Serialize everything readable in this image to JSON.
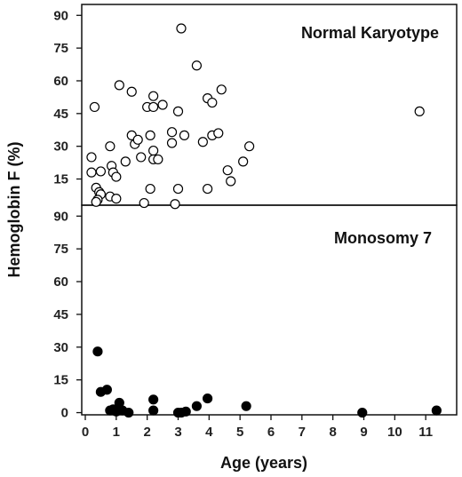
{
  "chart_data": {
    "type": "scatter",
    "xlabel": "Age (years)",
    "ylabel": "Hemoglobin F (%)",
    "x_ticks": [
      "0",
      "1",
      "2",
      "3",
      "4",
      "5",
      "6",
      "7",
      "8",
      "9",
      "10",
      "11"
    ],
    "xlim": [
      0,
      12
    ],
    "grid": false,
    "panels": [
      {
        "title": "Normal Karyotype",
        "marker": "open-circle",
        "y_ticks": [
          "15",
          "30",
          "45",
          "60",
          "75",
          "90"
        ],
        "ylim": [
          3,
          95
        ],
        "points": [
          [
            0.3,
            48
          ],
          [
            0.2,
            25
          ],
          [
            0.2,
            18
          ],
          [
            0.5,
            18.5
          ],
          [
            0.8,
            30
          ],
          [
            0.85,
            21
          ],
          [
            0.9,
            18
          ],
          [
            1.0,
            16
          ],
          [
            0.35,
            11
          ],
          [
            0.45,
            9
          ],
          [
            0.5,
            8
          ],
          [
            0.4,
            5.5
          ],
          [
            0.35,
            4.5
          ],
          [
            0.8,
            7
          ],
          [
            1.0,
            6
          ],
          [
            1.1,
            58
          ],
          [
            1.3,
            23
          ],
          [
            1.5,
            35
          ],
          [
            1.6,
            31
          ],
          [
            1.7,
            33
          ],
          [
            1.5,
            55
          ],
          [
            1.8,
            25
          ],
          [
            2.0,
            48
          ],
          [
            2.2,
            53
          ],
          [
            2.2,
            48
          ],
          [
            2.1,
            35
          ],
          [
            2.2,
            28
          ],
          [
            2.2,
            24
          ],
          [
            2.35,
            24
          ],
          [
            2.5,
            49
          ],
          [
            2.8,
            36.5
          ],
          [
            2.8,
            31.5
          ],
          [
            3.0,
            46
          ],
          [
            3.1,
            84
          ],
          [
            3.2,
            35
          ],
          [
            3.6,
            67
          ],
          [
            3.8,
            32
          ],
          [
            3.95,
            52
          ],
          [
            4.1,
            50
          ],
          [
            4.1,
            35
          ],
          [
            4.3,
            36
          ],
          [
            4.4,
            56
          ],
          [
            4.6,
            19
          ],
          [
            4.7,
            14
          ],
          [
            5.1,
            23
          ],
          [
            5.3,
            30
          ],
          [
            2.1,
            10.5
          ],
          [
            3.0,
            10.5
          ],
          [
            3.95,
            10.5
          ],
          [
            1.9,
            4
          ],
          [
            2.9,
            3.5
          ],
          [
            10.8,
            46
          ]
        ]
      },
      {
        "title": "Monosomy 7",
        "marker": "filled-circle",
        "y_ticks": [
          "0",
          "15",
          "30",
          "45",
          "60",
          "75",
          "90"
        ],
        "ylim": [
          -1,
          95
        ],
        "points": [
          [
            0.4,
            28
          ],
          [
            0.5,
            9.5
          ],
          [
            0.7,
            10.5
          ],
          [
            0.8,
            1
          ],
          [
            0.9,
            1.5
          ],
          [
            1.0,
            0.5
          ],
          [
            1.1,
            4.5
          ],
          [
            1.2,
            1
          ],
          [
            1.4,
            0
          ],
          [
            2.2,
            6
          ],
          [
            2.2,
            1
          ],
          [
            3.0,
            0
          ],
          [
            3.1,
            0
          ],
          [
            3.25,
            0.5
          ],
          [
            3.6,
            3
          ],
          [
            3.95,
            6.5
          ],
          [
            5.2,
            3
          ],
          [
            8.95,
            0
          ],
          [
            11.35,
            1
          ]
        ]
      }
    ]
  }
}
